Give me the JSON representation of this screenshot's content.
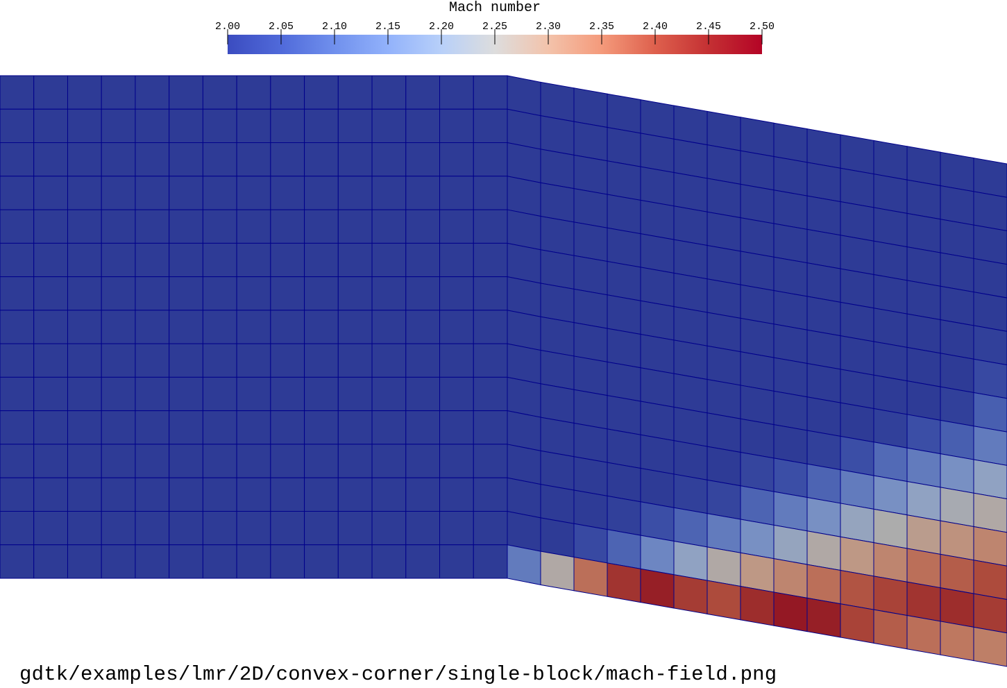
{
  "chart_data": {
    "type": "heatmap",
    "title": "Mach number",
    "colorbar": {
      "label": "Mach number",
      "min": 2.0,
      "max": 2.5,
      "ticks": [
        "2.00",
        "2.05",
        "2.10",
        "2.15",
        "2.20",
        "2.25",
        "2.30",
        "2.35",
        "2.40",
        "2.45",
        "2.50"
      ],
      "colormap": "coolwarm",
      "colors": {
        "low": "#3b4cc0",
        "mid": "#dddddd",
        "high": "#b40426"
      }
    },
    "mesh": {
      "columns_upstream": 15,
      "columns_downstream": 15,
      "rows": 15,
      "wall": "convex-corner",
      "wall_deflection_deg": 8,
      "cell_edge_color": "#00008b"
    },
    "mach_field_downstream": {
      "row_order": "top-to-bottom",
      "column_order": "left-to-right",
      "values": [
        [
          2.0,
          2.0,
          2.0,
          2.0,
          2.0,
          2.0,
          2.0,
          2.0,
          2.0,
          2.0,
          2.0,
          2.0,
          2.0,
          2.0,
          2.0
        ],
        [
          2.0,
          2.0,
          2.0,
          2.0,
          2.0,
          2.0,
          2.0,
          2.0,
          2.0,
          2.0,
          2.0,
          2.0,
          2.0,
          2.0,
          2.0
        ],
        [
          2.0,
          2.0,
          2.0,
          2.0,
          2.0,
          2.0,
          2.0,
          2.0,
          2.0,
          2.0,
          2.0,
          2.0,
          2.0,
          2.0,
          2.0
        ],
        [
          2.0,
          2.0,
          2.0,
          2.0,
          2.0,
          2.0,
          2.0,
          2.0,
          2.0,
          2.0,
          2.0,
          2.0,
          2.0,
          2.0,
          2.0
        ],
        [
          2.0,
          2.0,
          2.0,
          2.0,
          2.0,
          2.0,
          2.0,
          2.0,
          2.0,
          2.0,
          2.0,
          2.0,
          2.0,
          2.0,
          2.0
        ],
        [
          2.0,
          2.0,
          2.0,
          2.0,
          2.0,
          2.0,
          2.0,
          2.0,
          2.0,
          2.0,
          2.0,
          2.0,
          2.0,
          2.0,
          2.01
        ],
        [
          2.0,
          2.0,
          2.0,
          2.0,
          2.0,
          2.0,
          2.0,
          2.0,
          2.0,
          2.0,
          2.0,
          2.0,
          2.0,
          2.0,
          2.03
        ],
        [
          2.0,
          2.0,
          2.0,
          2.0,
          2.0,
          2.0,
          2.0,
          2.0,
          2.0,
          2.0,
          2.0,
          2.0,
          2.0,
          2.01,
          2.07
        ],
        [
          2.0,
          2.0,
          2.0,
          2.0,
          2.0,
          2.0,
          2.0,
          2.0,
          2.0,
          2.0,
          2.0,
          2.01,
          2.04,
          2.07,
          2.12
        ],
        [
          2.0,
          2.0,
          2.0,
          2.0,
          2.0,
          2.0,
          2.0,
          2.0,
          2.0,
          2.01,
          2.04,
          2.09,
          2.12,
          2.16,
          2.2
        ],
        [
          2.0,
          2.0,
          2.0,
          2.0,
          2.0,
          2.0,
          2.0,
          2.02,
          2.04,
          2.08,
          2.12,
          2.16,
          2.2,
          2.24,
          2.26
        ],
        [
          2.0,
          2.0,
          2.0,
          2.0,
          2.0,
          2.01,
          2.02,
          2.08,
          2.12,
          2.16,
          2.21,
          2.25,
          2.29,
          2.31,
          2.33
        ],
        [
          2.0,
          2.0,
          2.0,
          2.01,
          2.04,
          2.08,
          2.12,
          2.16,
          2.21,
          2.26,
          2.3,
          2.33,
          2.36,
          2.38,
          2.4
        ],
        [
          2.0,
          2.0,
          2.03,
          2.08,
          2.14,
          2.2,
          2.26,
          2.3,
          2.33,
          2.36,
          2.39,
          2.41,
          2.43,
          2.44,
          2.42
        ],
        [
          2.12,
          2.26,
          2.36,
          2.43,
          2.46,
          2.42,
          2.4,
          2.44,
          2.47,
          2.46,
          2.41,
          2.38,
          2.36,
          2.35,
          2.34
        ]
      ]
    }
  },
  "caption": "gdtk/examples/lmr/2D/convex-corner/single-block/mach-field.png"
}
